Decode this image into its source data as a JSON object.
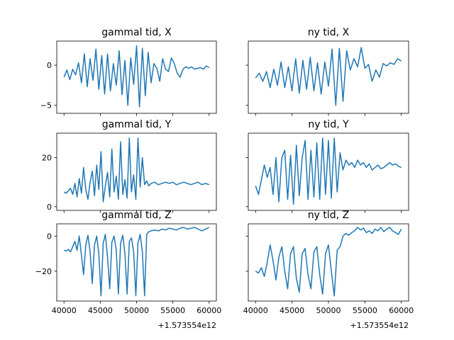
{
  "chart_data": [
    {
      "type": "line",
      "title": "gammal tid, X",
      "xlim": [
        39000,
        61000
      ],
      "ylim": [
        -6,
        3
      ],
      "yticks": [
        {
          "v": 0,
          "label": "0"
        },
        {
          "v": -5,
          "label": "−5"
        }
      ],
      "series_color": "#1f77b4",
      "x": [
        40000,
        40400,
        40800,
        41200,
        41600,
        42000,
        42400,
        42800,
        43200,
        43600,
        44000,
        44400,
        44800,
        45200,
        45600,
        46000,
        46400,
        46800,
        47200,
        47600,
        48000,
        48400,
        48800,
        49200,
        49600,
        50000,
        50400,
        50800,
        51200,
        51600,
        52000,
        52400,
        52800,
        53200,
        53600,
        54000,
        54400,
        54800,
        55200,
        55600,
        56000,
        56400,
        56800,
        57200,
        57600,
        58000,
        58400,
        58800,
        59200,
        59600,
        60000
      ],
      "values": [
        -1.5,
        -0.6,
        -1.8,
        -0.5,
        -1.2,
        0.3,
        -2.2,
        1.4,
        -2.7,
        0.8,
        -1.9,
        2.0,
        -3.0,
        1.2,
        -3.6,
        1.4,
        -3.2,
        0.2,
        -2.5,
        1.8,
        -3.7,
        0.6,
        -5.0,
        0.9,
        -2.4,
        2.4,
        -5.2,
        2.1,
        -3.8,
        1.6,
        -2.2,
        0.2,
        -0.4,
        -2.0,
        0.8,
        -0.5,
        -0.8,
        0.9,
        0.2,
        -1.0,
        -1.5,
        -0.5,
        -0.2,
        -0.4,
        -0.2,
        -0.5,
        -0.4,
        -0.3,
        -0.5,
        -0.1,
        -0.3
      ]
    },
    {
      "type": "line",
      "title": "ny tid, X",
      "xlim": [
        39000,
        61000
      ],
      "ylim": [
        -6,
        3
      ],
      "yticks": [
        {
          "v": 0,
          "label": ""
        },
        {
          "v": -5,
          "label": ""
        }
      ],
      "series_color": "#1f77b4",
      "x": [
        40000,
        40500,
        41000,
        41500,
        42000,
        42500,
        43000,
        43500,
        44000,
        44500,
        45000,
        45500,
        46000,
        46500,
        47000,
        47500,
        48000,
        48500,
        49000,
        49500,
        50000,
        50500,
        51000,
        51500,
        52000,
        52500,
        53000,
        53500,
        54000,
        54500,
        55000,
        55500,
        56000,
        56500,
        57000,
        57500,
        58000,
        58500,
        59000,
        59500,
        60000
      ],
      "values": [
        -1.6,
        -1.0,
        -2.0,
        -0.8,
        -2.8,
        -0.5,
        -2.5,
        0.4,
        -2.8,
        -0.2,
        -3.2,
        0.8,
        -3.5,
        0.6,
        -3.0,
        1.0,
        -3.2,
        0.3,
        -3.6,
        0.4,
        -2.6,
        2.0,
        -5.0,
        2.1,
        -4.5,
        1.8,
        -0.6,
        0.8,
        -0.2,
        2.2,
        -0.4,
        0.1,
        -2.0,
        -0.6,
        -1.5,
        0.2,
        -0.1,
        0.3,
        0.1,
        0.8,
        0.5
      ]
    },
    {
      "type": "line",
      "title": "gammal tid, Y",
      "xlim": [
        39000,
        61000
      ],
      "ylim": [
        -1.5,
        30
      ],
      "yticks": [
        {
          "v": 20,
          "label": "20"
        },
        {
          "v": 0,
          "label": "0"
        }
      ],
      "series_color": "#1f77b4",
      "x": [
        40000,
        40300,
        40600,
        40900,
        41200,
        41500,
        41800,
        42100,
        42400,
        42700,
        43000,
        43300,
        43600,
        43900,
        44200,
        44500,
        44800,
        45100,
        45400,
        45700,
        46000,
        46300,
        46600,
        46900,
        47200,
        47500,
        47800,
        48100,
        48400,
        48700,
        49000,
        49300,
        49600,
        49900,
        50200,
        50500,
        50800,
        51100,
        51400,
        51700,
        52000,
        52500,
        53000,
        53500,
        54000,
        54500,
        55000,
        55500,
        56000,
        56500,
        57000,
        57500,
        58000,
        58500,
        59000,
        59500,
        60000
      ],
      "values": [
        6.0,
        5.5,
        6.5,
        7.5,
        5.0,
        9.5,
        4.0,
        11.5,
        5.5,
        16.0,
        7.0,
        3.0,
        10.0,
        14.5,
        4.5,
        17.0,
        7.0,
        22.5,
        2.0,
        8.5,
        14.0,
        4.0,
        23.5,
        6.0,
        12.5,
        3.0,
        26.5,
        5.0,
        11.0,
        3.5,
        28.0,
        6.0,
        13.0,
        3.0,
        28.0,
        8.0,
        20.0,
        9.0,
        10.5,
        8.5,
        9.5,
        10.0,
        9.0,
        9.5,
        10.0,
        9.5,
        10.0,
        9.0,
        9.5,
        10.0,
        9.5,
        9.0,
        9.5,
        10.0,
        9.0,
        9.5,
        9.0
      ]
    },
    {
      "type": "line",
      "title": "ny tid, Y",
      "xlim": [
        39000,
        61000
      ],
      "ylim": [
        -1.5,
        30
      ],
      "yticks": [
        {
          "v": 20,
          "label": ""
        },
        {
          "v": 0,
          "label": ""
        }
      ],
      "series_color": "#1f77b4",
      "x": [
        40000,
        40400,
        40800,
        41200,
        41600,
        42000,
        42400,
        42800,
        43200,
        43600,
        44000,
        44400,
        44800,
        45200,
        45600,
        46000,
        46400,
        46800,
        47200,
        47600,
        48000,
        48400,
        48800,
        49200,
        49600,
        50000,
        50400,
        50800,
        51200,
        51600,
        52000,
        52400,
        52800,
        53200,
        53600,
        54000,
        54400,
        54800,
        55200,
        55600,
        56000,
        56400,
        56800,
        57200,
        57600,
        58000,
        58400,
        58800,
        59200,
        59600,
        60000
      ],
      "values": [
        8.5,
        5.0,
        11.0,
        17.0,
        12.0,
        16.0,
        5.0,
        20.0,
        2.0,
        20.0,
        23.0,
        3.0,
        21.0,
        1.0,
        25.0,
        4.5,
        20.0,
        27.0,
        3.0,
        23.0,
        4.0,
        26.0,
        3.0,
        28.0,
        5.0,
        27.0,
        3.5,
        28.0,
        6.0,
        22.0,
        15.0,
        19.0,
        17.0,
        18.0,
        16.0,
        19.0,
        17.0,
        18.0,
        16.0,
        17.5,
        15.0,
        16.0,
        17.0,
        15.5,
        16.0,
        17.0,
        18.0,
        17.0,
        17.5,
        16.5,
        16.0
      ]
    },
    {
      "type": "line",
      "title": "gammal tid, Z",
      "xlim": [
        39000,
        61000
      ],
      "ylim": [
        -37,
        7
      ],
      "yticks": [
        {
          "v": 0,
          "label": "0"
        },
        {
          "v": -20,
          "label": "−20"
        }
      ],
      "series_color": "#1f77b4",
      "x": [
        40000,
        40300,
        40600,
        40900,
        41200,
        41500,
        41800,
        42100,
        42400,
        42700,
        43000,
        43300,
        43600,
        43900,
        44200,
        44500,
        44800,
        45100,
        45400,
        45700,
        46000,
        46300,
        46600,
        46900,
        47200,
        47500,
        47800,
        48100,
        48400,
        48700,
        49000,
        49300,
        49600,
        49900,
        50200,
        50500,
        50800,
        51100,
        51400,
        51700,
        52000,
        52500,
        53000,
        53500,
        54000,
        54500,
        55000,
        55500,
        56000,
        56500,
        57000,
        57500,
        58000,
        58500,
        59000,
        59500,
        60000
      ],
      "values": [
        -8.0,
        -8.5,
        -7.5,
        -9.0,
        -6.0,
        -3.0,
        -8.0,
        0.0,
        -11.0,
        -22.0,
        -5.0,
        0.5,
        -9.0,
        -27.0,
        -5.0,
        0.0,
        -10.0,
        -34.0,
        -4.0,
        1.0,
        -12.0,
        -30.0,
        -3.5,
        0.0,
        -8.0,
        -33.0,
        -4.0,
        0.5,
        -10.0,
        -33.0,
        -3.0,
        -1.0,
        -9.0,
        -34.0,
        -4.0,
        1.0,
        -9.0,
        -34.0,
        1.0,
        2.5,
        3.0,
        3.5,
        3.0,
        4.0,
        3.5,
        4.5,
        4.0,
        3.5,
        4.5,
        5.0,
        4.0,
        4.5,
        5.0,
        4.0,
        3.0,
        4.0,
        5.0
      ]
    },
    {
      "type": "line",
      "title": "ny tid, Z",
      "xlim": [
        39000,
        61000
      ],
      "ylim": [
        -37,
        7
      ],
      "yticks": [
        {
          "v": 0,
          "label": ""
        },
        {
          "v": -20,
          "label": ""
        }
      ],
      "series_color": "#1f77b4",
      "x": [
        40000,
        40400,
        40800,
        41200,
        41600,
        42000,
        42400,
        42800,
        43200,
        43600,
        44000,
        44400,
        44800,
        45200,
        45600,
        46000,
        46400,
        46800,
        47200,
        47600,
        48000,
        48400,
        48800,
        49200,
        49600,
        50000,
        50400,
        50800,
        51200,
        51600,
        52000,
        52400,
        52800,
        53200,
        53600,
        54000,
        54400,
        54800,
        55200,
        55600,
        56000,
        56400,
        56800,
        57200,
        57600,
        58000,
        58400,
        58800,
        59200,
        59600,
        60000
      ],
      "values": [
        -20.0,
        -21.0,
        -18.0,
        -23.0,
        -15.0,
        -5.0,
        -14.0,
        -25.0,
        -12.0,
        -6.0,
        -20.0,
        -30.0,
        -10.0,
        -6.0,
        -24.0,
        -32.0,
        -10.0,
        -7.0,
        -22.0,
        -30.0,
        -9.0,
        -6.0,
        -22.0,
        -33.0,
        -10.0,
        -5.0,
        -20.0,
        -34.0,
        -8.0,
        -6.0,
        0.0,
        1.5,
        0.5,
        2.0,
        3.0,
        5.0,
        3.5,
        4.5,
        2.0,
        3.0,
        1.5,
        4.0,
        3.0,
        5.0,
        2.5,
        4.0,
        5.0,
        3.0,
        2.0,
        1.0,
        4.0
      ]
    }
  ],
  "x_axis": {
    "tick_values": [
      40000,
      45000,
      50000,
      55000,
      60000
    ],
    "tick_labels": [
      "40000",
      "45000",
      "50000",
      "55000",
      "60000"
    ],
    "offset_label": "+1.573554e12"
  }
}
